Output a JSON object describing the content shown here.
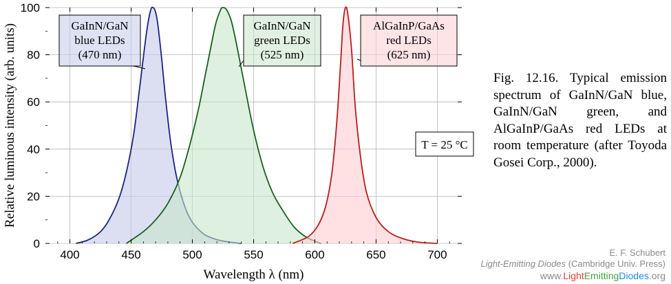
{
  "chart_data": {
    "type": "area",
    "xlabel": "Wavelength λ  (nm)",
    "ylabel": "Relative luminous intensity  (arb. units)",
    "xlim": [
      380,
      720
    ],
    "ylim": [
      0,
      100
    ],
    "x_ticks": [
      400,
      450,
      500,
      550,
      600,
      650,
      700
    ],
    "y_ticks": [
      0,
      20,
      40,
      60,
      80,
      100
    ],
    "grid": true,
    "annotation": "T = 25 °C",
    "series": [
      {
        "name": "GaInN/GaN blue LEDs (470 nm)",
        "label_lines": [
          "GaInN/GaN",
          "blue LEDs",
          "(470 nm)"
        ],
        "color": "#1a237e",
        "fill": "#c5cae9",
        "x": [
          405,
          415,
          425,
          432,
          440,
          446,
          452,
          456,
          460,
          463,
          466,
          468,
          470,
          472,
          475,
          478,
          482,
          486,
          490,
          495,
          500,
          508,
          515,
          525,
          540
        ],
        "y": [
          0,
          1.5,
          5,
          10,
          19,
          30,
          46,
          62,
          79,
          91,
          99,
          100,
          98,
          92,
          78,
          62,
          44,
          31,
          22,
          14,
          9,
          4.5,
          2.5,
          1,
          0
        ]
      },
      {
        "name": "GaInN/GaN green LEDs (525 nm)",
        "label_lines": [
          "GaInN/GaN",
          "green LEDs",
          "(525 nm)"
        ],
        "color": "#1b5e20",
        "fill": "#c8e6c9",
        "x": [
          446,
          460,
          470,
          480,
          490,
          498,
          505,
          510,
          515,
          519,
          523,
          525,
          528,
          532,
          537,
          543,
          550,
          558,
          566,
          575,
          583,
          592,
          600,
          605
        ],
        "y": [
          0,
          5,
          10,
          17,
          28,
          42,
          57,
          70,
          83,
          93,
          99,
          100,
          99,
          94,
          82,
          66,
          48,
          32,
          21,
          13,
          7,
          3,
          1,
          0
        ]
      },
      {
        "name": "AlGaInP/GaAs red LEDs (625 nm)",
        "label_lines": [
          "AlGaInP/GaAs",
          "red LEDs",
          "(625 nm)"
        ],
        "color": "#b71c1c",
        "fill": "#ffcdd2",
        "x": [
          582,
          595,
          603,
          609,
          614,
          618,
          621,
          623,
          625,
          627,
          630,
          633,
          637,
          642,
          650,
          660,
          672,
          685,
          700
        ],
        "y": [
          0,
          3,
          8,
          16,
          30,
          52,
          76,
          93,
          100,
          97,
          82,
          58,
          38,
          22,
          11,
          5,
          2,
          0.5,
          0
        ]
      }
    ]
  },
  "caption": "Fig. 12.16. Typical emission spectrum of GaInN/GaN blue, GaInN/GaN green, and AlGaInP/GaAs red LEDs at room temperature (after Toyoda Gosei Corp., 2000).",
  "credit": {
    "author": "E. F. Schubert",
    "book": "Light-Emitting Diodes",
    "publisher": " (Cambridge Univ. Press)",
    "url_prefix": "www.",
    "url_light": "Light",
    "url_emitting": "Emitting",
    "url_diodes": "Diodes",
    "url_suffix": ".org",
    "colors": {
      "light": "#e53935",
      "emitting": "#43a047",
      "diodes": "#1e88e5"
    }
  }
}
